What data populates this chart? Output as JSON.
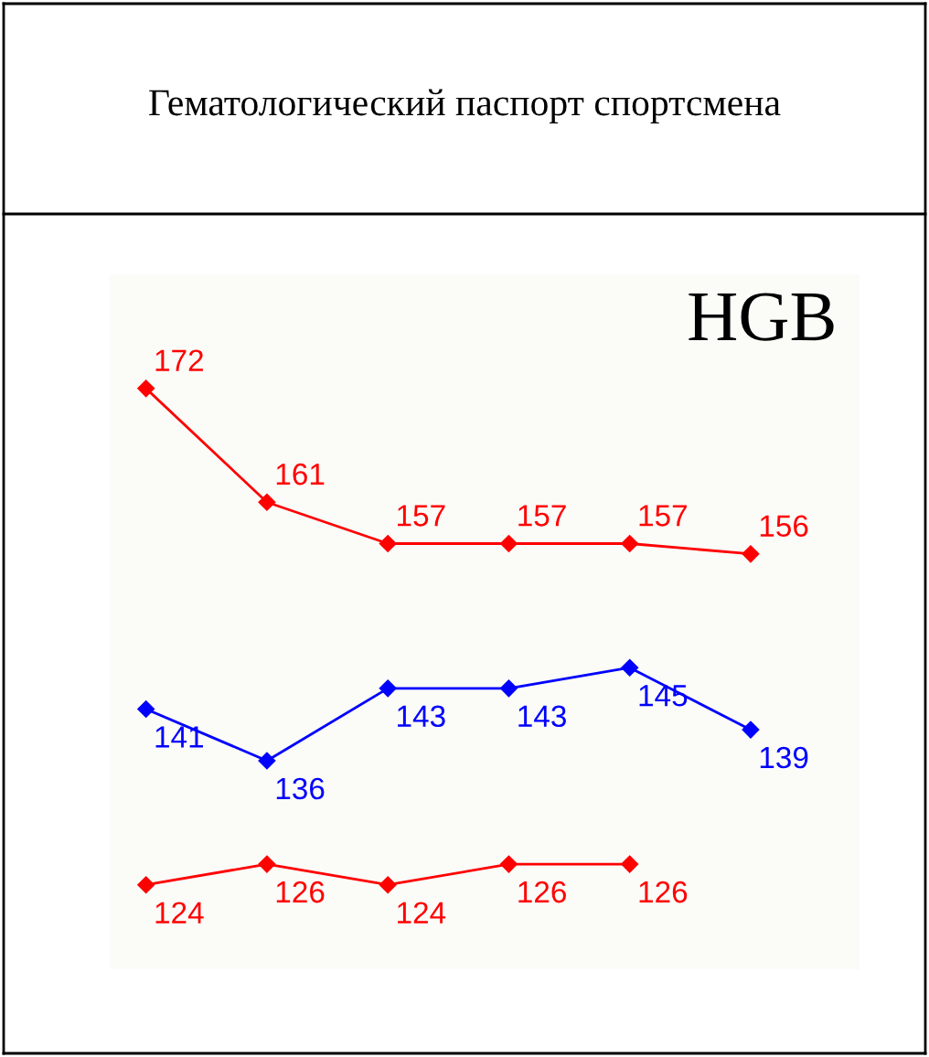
{
  "chart_data": {
    "type": "line",
    "title": "Гематологический паспорт спортсмена",
    "subtitle": "HGB",
    "categories": [
      null,
      null,
      null,
      null,
      null,
      null
    ],
    "series": [
      {
        "color": "#ff0000",
        "values": [
          172,
          161,
          157,
          157,
          157,
          156
        ]
      },
      {
        "color": "#0000ff",
        "values": [
          141,
          136,
          143,
          143,
          145,
          139
        ]
      },
      {
        "color": "#ff0000",
        "values": [
          124,
          126,
          124,
          126,
          126,
          null
        ]
      }
    ],
    "data_labels": true,
    "marker": "diamond",
    "line_style": "solid",
    "grid": false,
    "legend": false,
    "tick_labels": false
  }
}
